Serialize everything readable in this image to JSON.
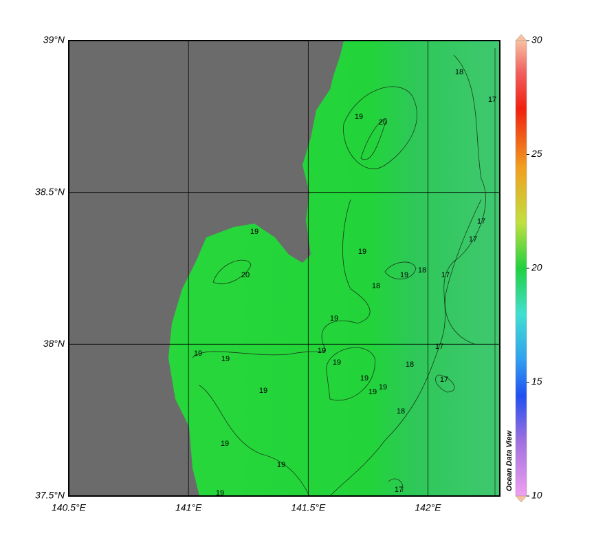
{
  "map": {
    "xlim": [
      140.5,
      142.3
    ],
    "ylim": [
      37.5,
      39
    ],
    "xticks": [
      {
        "value": 140.5,
        "label": "140.5°E"
      },
      {
        "value": 141,
        "label": "141°E"
      },
      {
        "value": 141.5,
        "label": "141.5°E"
      },
      {
        "value": 142,
        "label": "142°E"
      }
    ],
    "yticks": [
      {
        "value": 37.5,
        "label": "37.5°N"
      },
      {
        "value": 38,
        "label": "38°N"
      },
      {
        "value": 38.5,
        "label": "38.5°N"
      },
      {
        "value": 39,
        "label": "39°N"
      }
    ],
    "colorbar": {
      "lim": [
        10,
        30
      ],
      "ticks": [
        10,
        15,
        20,
        25,
        30
      ],
      "label": "Ocean Data View"
    },
    "contour_labels": [
      18,
      17,
      19,
      20,
      17,
      17,
      19,
      19,
      20,
      19,
      18,
      17,
      18,
      19,
      17,
      19,
      19,
      19,
      19,
      19,
      18,
      17,
      19,
      19,
      19,
      18,
      19,
      19,
      17,
      19
    ]
  }
}
